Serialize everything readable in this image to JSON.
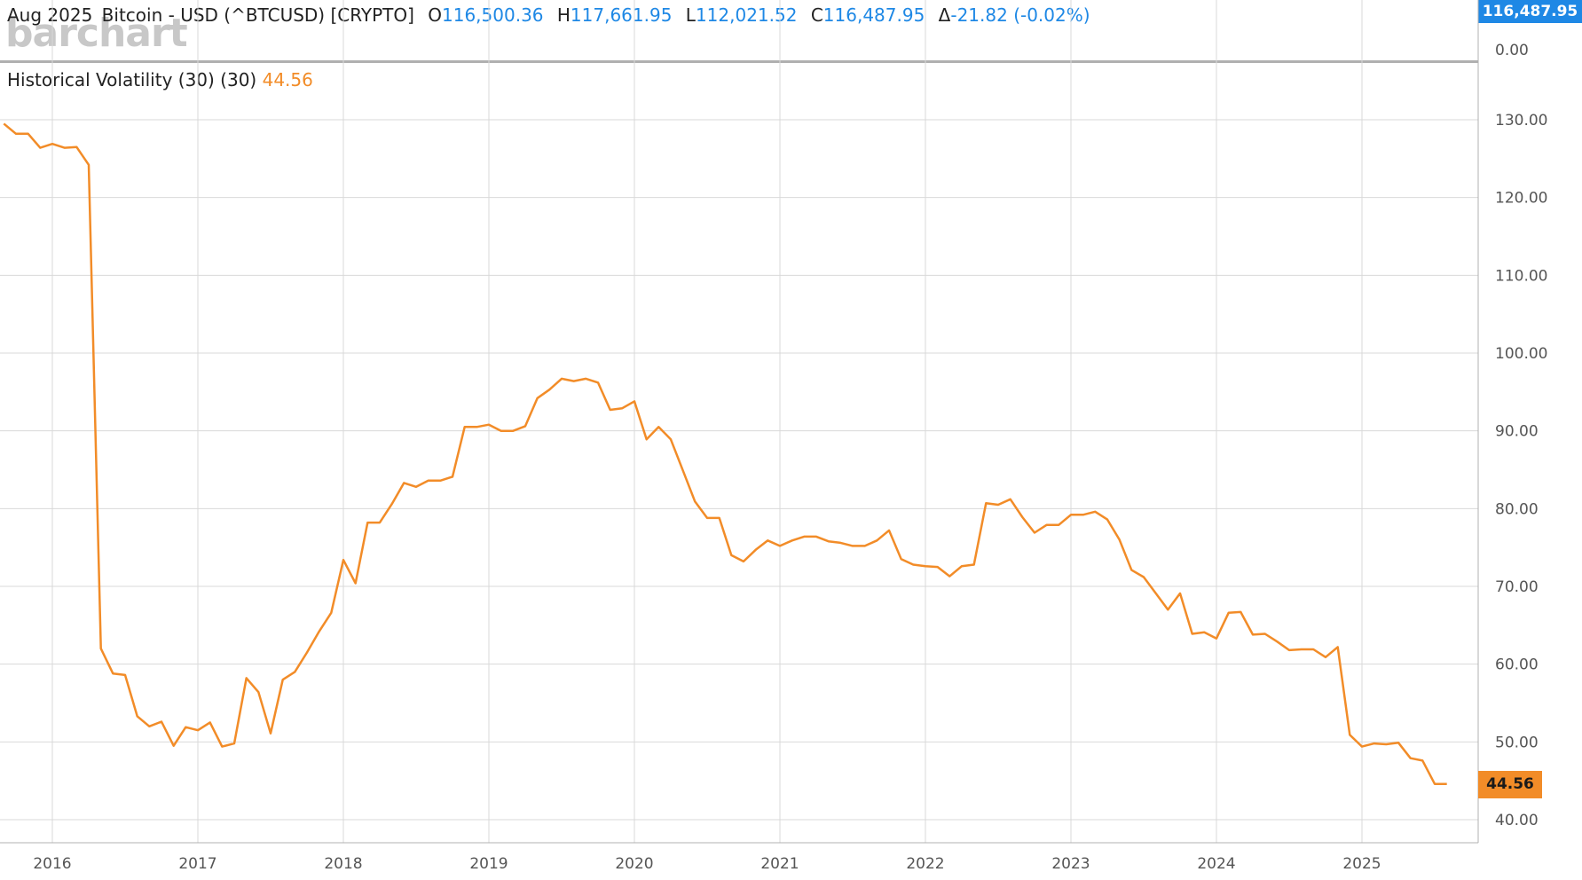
{
  "header": {
    "period": "Aug 2025",
    "symbol_text": "Bitcoin - USD (^BTCUSD) [CRYPTO]",
    "open_label": "O",
    "open": "116,500.36",
    "high_label": "H",
    "high": "117,661.95",
    "low_label": "L",
    "low": "112,021.52",
    "close_label": "C",
    "close": "116,487.95",
    "change_label": "Δ",
    "change": "-21.82 (-0.02%)"
  },
  "logo": "barchart",
  "price_pane": {
    "last_price": "116,487.95",
    "axis_label": "0.00"
  },
  "study": {
    "name": "Historical Volatility (30)  (30)",
    "value": "44.56"
  },
  "colors": {
    "line": "#f28c28",
    "accent": "#1e88e5",
    "grid": "#d9d9d9"
  },
  "chart_data": {
    "type": "line",
    "title": "Historical Volatility (30)",
    "ylim": [
      37,
      133
    ],
    "yticks": [
      40,
      50,
      60,
      70,
      80,
      90,
      100,
      110,
      120,
      130
    ],
    "ytick_labels": [
      "40.00",
      "50.00",
      "60.00",
      "70.00",
      "80.00",
      "90.00",
      "100.00",
      "110.00",
      "120.00",
      "130.00"
    ],
    "xticks": [
      "2016",
      "2017",
      "2018",
      "2019",
      "2020",
      "2021",
      "2022",
      "2023",
      "2024",
      "2025"
    ],
    "grid": true,
    "last_value_label": "44.56",
    "series": [
      {
        "name": "Historical Volatility (30)",
        "x": [
          "2015-09",
          "2015-10",
          "2015-11",
          "2015-12",
          "2016-01",
          "2016-02",
          "2016-03",
          "2016-04",
          "2016-05",
          "2016-06",
          "2016-07",
          "2016-08",
          "2016-09",
          "2016-10",
          "2016-11",
          "2016-12",
          "2017-01",
          "2017-02",
          "2017-03",
          "2017-04",
          "2017-05",
          "2017-06",
          "2017-07",
          "2017-08",
          "2017-09",
          "2017-10",
          "2017-11",
          "2017-12",
          "2018-01",
          "2018-02",
          "2018-03",
          "2018-04",
          "2018-05",
          "2018-06",
          "2018-07",
          "2018-08",
          "2018-09",
          "2018-10",
          "2018-11",
          "2018-12",
          "2019-01",
          "2019-02",
          "2019-03",
          "2019-04",
          "2019-05",
          "2019-06",
          "2019-07",
          "2019-08",
          "2019-09",
          "2019-10",
          "2019-11",
          "2019-12",
          "2020-01",
          "2020-02",
          "2020-03",
          "2020-04",
          "2020-05",
          "2020-06",
          "2020-07",
          "2020-08",
          "2020-09",
          "2020-10",
          "2020-11",
          "2020-12",
          "2021-01",
          "2021-02",
          "2021-03",
          "2021-04",
          "2021-05",
          "2021-06",
          "2021-07",
          "2021-08",
          "2021-09",
          "2021-10",
          "2021-11",
          "2021-12",
          "2022-01",
          "2022-02",
          "2022-03",
          "2022-04",
          "2022-05",
          "2022-06",
          "2022-07",
          "2022-08",
          "2022-09",
          "2022-10",
          "2022-11",
          "2022-12",
          "2023-01",
          "2023-02",
          "2023-03",
          "2023-04",
          "2023-05",
          "2023-06",
          "2023-07",
          "2023-08",
          "2023-09",
          "2023-10",
          "2023-11",
          "2023-12",
          "2024-01",
          "2024-02",
          "2024-03",
          "2024-04",
          "2024-05",
          "2024-06",
          "2024-07",
          "2024-08",
          "2024-09",
          "2024-10",
          "2024-11",
          "2024-12",
          "2025-01",
          "2025-02",
          "2025-03",
          "2025-04",
          "2025-05",
          "2025-06",
          "2025-07",
          "2025-08"
        ],
        "values": [
          129.5,
          128.2,
          128.2,
          126.4,
          126.9,
          126.4,
          126.5,
          124.2,
          62.0,
          58.8,
          58.6,
          53.3,
          52.0,
          52.6,
          49.5,
          51.9,
          51.5,
          52.5,
          49.4,
          49.8,
          58.2,
          56.4,
          51.1,
          58.0,
          59.0,
          61.5,
          64.2,
          66.6,
          73.4,
          70.4,
          78.2,
          78.2,
          80.6,
          83.3,
          82.8,
          83.6,
          83.6,
          84.1,
          90.5,
          90.5,
          90.8,
          90.0,
          90.0,
          90.6,
          94.2,
          95.3,
          96.7,
          96.4,
          96.7,
          96.2,
          92.7,
          92.9,
          93.8,
          88.9,
          90.5,
          88.9,
          84.9,
          80.9,
          78.8,
          78.8,
          74.0,
          73.2,
          74.7,
          75.9,
          75.2,
          75.9,
          76.4,
          76.4,
          75.8,
          75.6,
          75.2,
          75.2,
          75.9,
          77.2,
          73.5,
          72.8,
          72.6,
          72.5,
          71.3,
          72.6,
          72.8,
          80.7,
          80.5,
          81.2,
          78.9,
          76.9,
          77.9,
          77.9,
          79.2,
          79.2,
          79.6,
          78.6,
          76.0,
          72.1,
          71.2,
          69.1,
          67.0,
          69.1,
          63.9,
          64.1,
          63.3,
          66.6,
          66.7,
          63.8,
          63.9,
          62.9,
          61.8,
          61.9,
          61.9,
          60.9,
          62.2,
          50.9,
          49.4,
          49.8,
          49.7,
          49.9,
          47.9,
          47.6,
          44.6,
          44.6
        ]
      }
    ]
  }
}
